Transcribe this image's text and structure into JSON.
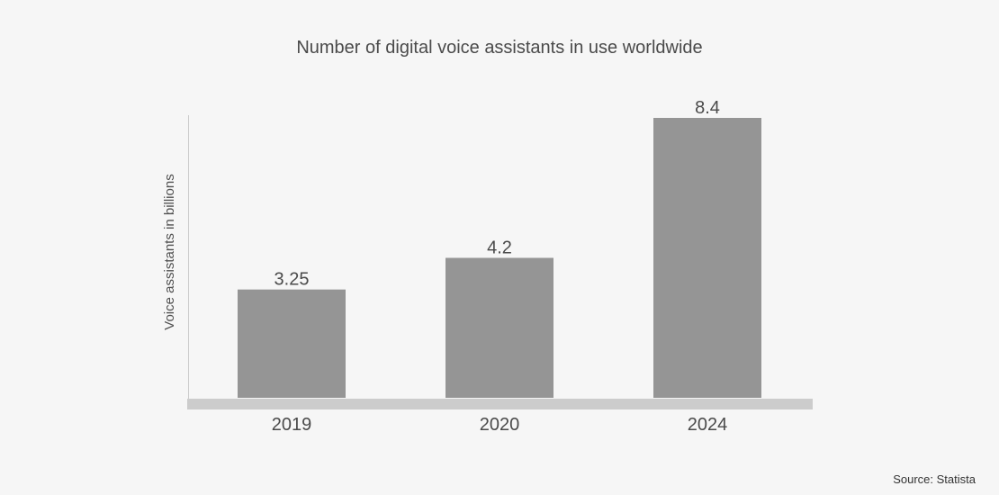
{
  "title": "Number of digital voice assistants in use worldwide",
  "source": "Source: Statista",
  "chart_data": {
    "type": "bar",
    "title": "Number of digital voice assistants in use worldwide",
    "xlabel": "",
    "ylabel": "Voice assistants in billions",
    "categories": [
      "2019",
      "2020",
      "2024"
    ],
    "values": [
      3.25,
      4.2,
      8.4
    ],
    "data_labels": [
      "3.25",
      "4.2",
      "8.4"
    ],
    "ylim": [
      0,
      8.4
    ],
    "grid": false,
    "legend": "none"
  },
  "colors": {
    "bar": "#959595",
    "axis": "#cccccc",
    "background": "#f6f6f6",
    "text": "#505050"
  }
}
